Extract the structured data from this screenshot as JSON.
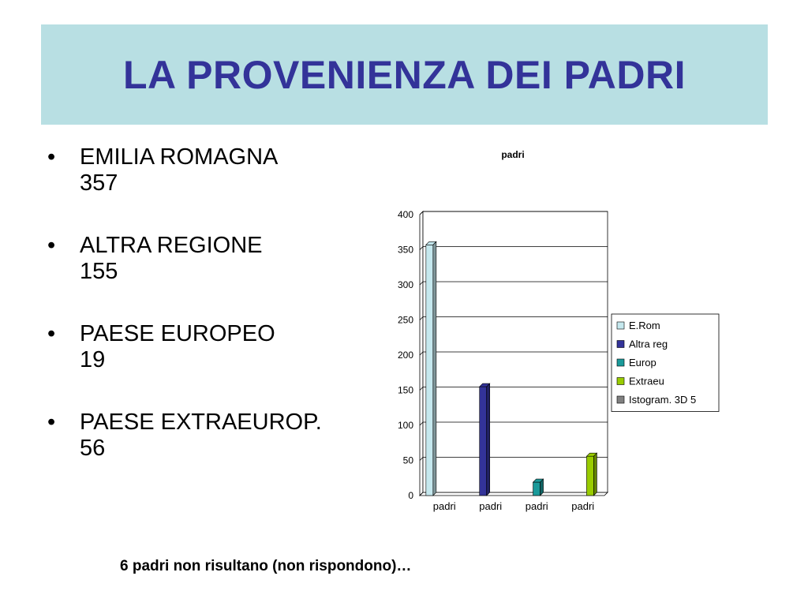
{
  "slide": {
    "title": "LA PROVENIENZA DEI PADRI",
    "bullets": [
      {
        "label": "EMILIA ROMAGNA",
        "value": "357"
      },
      {
        "label": "ALTRA REGIONE",
        "value": "155"
      },
      {
        "label": "PAESE EUROPEO",
        "value": "19"
      },
      {
        "label": "PAESE EXTRAEUROP.",
        "value": "56"
      }
    ],
    "note": "6 padri non risultano (non rispondono)…"
  },
  "chart_data": {
    "type": "bar",
    "title": "padri",
    "categories": [
      "padri",
      "padri",
      "padri",
      "padri"
    ],
    "series": [
      {
        "name": "E.Rom",
        "color": "#c5e8ee",
        "values": [
          357,
          0,
          0,
          0
        ]
      },
      {
        "name": "Altra reg",
        "color": "#333399",
        "values": [
          0,
          155,
          0,
          0
        ]
      },
      {
        "name": "Europ",
        "color": "#1a9a9a",
        "values": [
          0,
          0,
          19,
          0
        ]
      },
      {
        "name": "Extraeu",
        "color": "#99cc00",
        "values": [
          0,
          0,
          0,
          56
        ]
      },
      {
        "name": "Istogram. 3D 5",
        "color": "#808080",
        "values": [
          0,
          0,
          0,
          0
        ]
      }
    ],
    "ylim": [
      0,
      400
    ],
    "yticks": [
      0,
      50,
      100,
      150,
      200,
      250,
      300,
      350,
      400
    ],
    "grid": true,
    "legend": "right"
  }
}
